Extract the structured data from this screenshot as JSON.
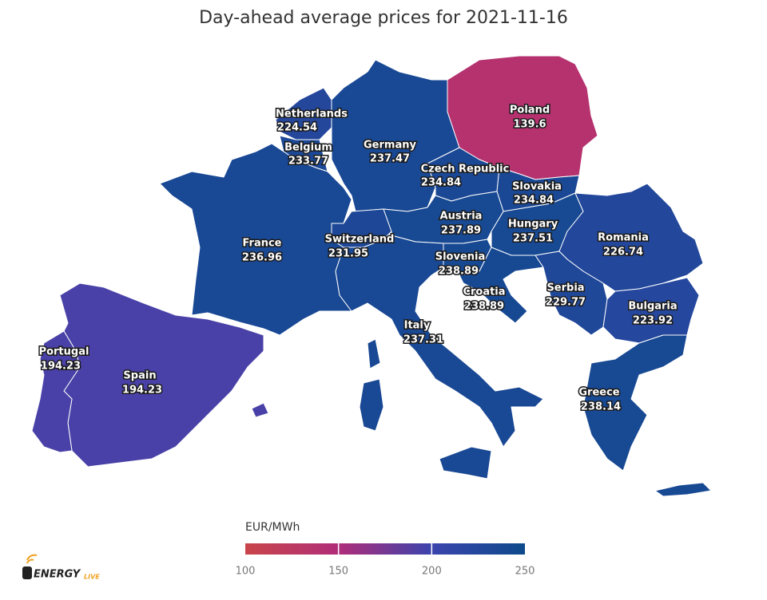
{
  "chart_data": {
    "type": "choropleth",
    "title": "Day-ahead average prices for 2021-11-16",
    "countries": [
      {
        "name": "Netherlands",
        "value": 224.54
      },
      {
        "name": "Belgium",
        "value": 233.77
      },
      {
        "name": "Germany",
        "value": 237.47
      },
      {
        "name": "Poland",
        "value": 139.6
      },
      {
        "name": "Czech Republic",
        "value": 234.84
      },
      {
        "name": "Slovakia",
        "value": 234.84
      },
      {
        "name": "France",
        "value": 236.96
      },
      {
        "name": "Switzerland",
        "value": 231.95
      },
      {
        "name": "Austria",
        "value": 237.89
      },
      {
        "name": "Hungary",
        "value": 237.51
      },
      {
        "name": "Romania",
        "value": 226.74
      },
      {
        "name": "Slovenia",
        "value": 238.89
      },
      {
        "name": "Croatia",
        "value": 238.89
      },
      {
        "name": "Serbia",
        "value": 229.77
      },
      {
        "name": "Bulgaria",
        "value": 223.92
      },
      {
        "name": "Italy",
        "value": 237.31
      },
      {
        "name": "Greece",
        "value": 238.14
      },
      {
        "name": "Portugal",
        "value": 194.23
      },
      {
        "name": "Spain",
        "value": 194.23
      }
    ],
    "colorscale": {
      "title": "EUR/MWh",
      "lim": [
        100,
        250
      ],
      "ticks": [
        100,
        150,
        200,
        250
      ],
      "colors": [
        "#c9464a",
        "#b02d79",
        "#3b44ad",
        "#0d4a8b"
      ]
    },
    "brand": {
      "name": "ENERGY",
      "suffix": "LIVE"
    }
  }
}
